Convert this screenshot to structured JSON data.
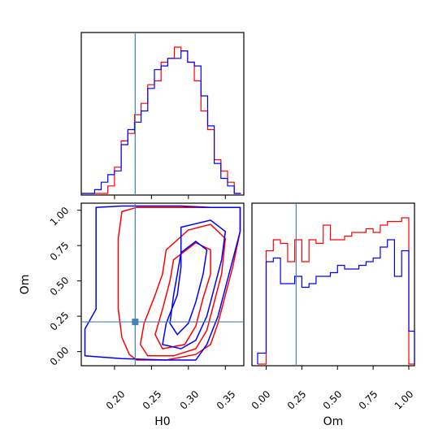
{
  "chart_data": {
    "type": "corner",
    "parameters": [
      "H0",
      "Om"
    ],
    "truth": {
      "H0": 0.228,
      "Om": 0.21
    },
    "colors": {
      "series_a": "#ff0000",
      "series_b": "#0000ff",
      "truth": "#4682b4"
    },
    "panels": {
      "h0_marginal": {
        "type": "histogram",
        "xlim": [
          0.155,
          0.375
        ],
        "bin_edges": [
          0.155,
          0.164,
          0.173,
          0.182,
          0.191,
          0.2,
          0.209,
          0.218,
          0.227,
          0.236,
          0.245,
          0.254,
          0.263,
          0.272,
          0.281,
          0.29,
          0.299,
          0.308,
          0.317,
          0.326,
          0.335,
          0.344,
          0.353,
          0.362,
          0.371
        ],
        "series": [
          {
            "color_key": "series_a",
            "counts": [
              0,
              0,
              0,
              0,
              2,
              7,
              14,
              16,
              21,
              24,
              29,
              30,
              35,
              36,
              39,
              38,
              35,
              30,
              22,
              17,
              9,
              6,
              3,
              0
            ]
          },
          {
            "color_key": "series_b",
            "counts": [
              0,
              0,
              1,
              3,
              5,
              6,
              13,
              17,
              19,
              22,
              28,
              33,
              34,
              36,
              36,
              38,
              35,
              34,
              26,
              18,
              8,
              4,
              2,
              0
            ]
          }
        ]
      },
      "om_marginal": {
        "type": "histogram",
        "xlim": [
          -0.1,
          1.04
        ],
        "xticks": [
          "0.00",
          "0.25",
          "0.50",
          "0.75",
          "1.00"
        ],
        "bin_edges": [
          -0.06,
          0.0,
          0.05,
          0.1,
          0.15,
          0.2,
          0.25,
          0.3,
          0.35,
          0.4,
          0.45,
          0.5,
          0.55,
          0.6,
          0.65,
          0.7,
          0.75,
          0.8,
          0.85,
          0.9,
          0.95,
          1.0,
          1.04
        ],
        "series": [
          {
            "color_key": "series_a",
            "counts": [
              0,
              31,
              34,
              33,
              28,
              34,
              28,
              34,
              33,
              38,
              34,
              34,
              35,
              36,
              36,
              37,
              36,
              38,
              39,
              39,
              40,
              0
            ]
          },
          {
            "color_key": "series_b",
            "counts": [
              3,
              28,
              29,
              22,
              22,
              24,
              21,
              22,
              24,
              24,
              25,
              27,
              26,
              26,
              27,
              28,
              29,
              32,
              34,
              24,
              31,
              9
            ]
          }
        ]
      },
      "joint": {
        "type": "contour",
        "xlabel": "H0",
        "ylabel": "Om",
        "xlim": [
          0.155,
          0.375
        ],
        "ylim": [
          -0.1,
          1.05
        ],
        "xticks": [
          "0.20",
          "0.25",
          "0.30",
          "0.35"
        ],
        "yticks": [
          "0.00",
          "0.25",
          "0.50",
          "0.75",
          "1.00"
        ],
        "series": [
          {
            "color_key": "series_a",
            "contours": [
              [
                [
                  0.21,
                  0.99
                ],
                [
                  0.23,
                  1.02
                ],
                [
                  0.26,
                  1.02
                ],
                [
                  0.3,
                  1.02
                ],
                [
                  0.33,
                  1.02
                ],
                [
                  0.37,
                  1.02
                ],
                [
                  0.37,
                  0.85
                ],
                [
                  0.36,
                  0.6
                ],
                [
                  0.35,
                  0.4
                ],
                [
                  0.34,
                  0.2
                ],
                [
                  0.33,
                  0.05
                ],
                [
                  0.31,
                  -0.02
                ],
                [
                  0.27,
                  -0.06
                ],
                [
                  0.23,
                  -0.06
                ],
                [
                  0.22,
                  -0.02
                ],
                [
                  0.21,
                  0.1
                ],
                [
                  0.205,
                  0.3
                ],
                [
                  0.205,
                  0.55
                ],
                [
                  0.205,
                  0.8
                ]
              ],
              [
                [
                  0.27,
                  0.72
                ],
                [
                  0.3,
                  0.86
                ],
                [
                  0.33,
                  0.9
                ],
                [
                  0.35,
                  0.8
                ],
                [
                  0.345,
                  0.55
                ],
                [
                  0.335,
                  0.35
                ],
                [
                  0.325,
                  0.15
                ],
                [
                  0.31,
                  0.02
                ],
                [
                  0.28,
                  -0.03
                ],
                [
                  0.245,
                  -0.03
                ],
                [
                  0.235,
                  0.05
                ],
                [
                  0.24,
                  0.2
                ],
                [
                  0.255,
                  0.4
                ],
                [
                  0.265,
                  0.55
                ]
              ],
              [
                [
                  0.28,
                  0.65
                ],
                [
                  0.31,
                  0.77
                ],
                [
                  0.33,
                  0.72
                ],
                [
                  0.33,
                  0.55
                ],
                [
                  0.32,
                  0.38
                ],
                [
                  0.31,
                  0.18
                ],
                [
                  0.295,
                  0.05
                ],
                [
                  0.265,
                  0.02
                ],
                [
                  0.255,
                  0.12
                ],
                [
                  0.265,
                  0.3
                ],
                [
                  0.275,
                  0.5
                ]
              ]
            ]
          },
          {
            "color_key": "series_b",
            "contours": [
              [
                [
                  0.175,
                  1.02
                ],
                [
                  0.21,
                  1.03
                ],
                [
                  0.25,
                  1.03
                ],
                [
                  0.29,
                  1.03
                ],
                [
                  0.33,
                  1.02
                ],
                [
                  0.37,
                  1.02
                ],
                [
                  0.37,
                  0.85
                ],
                [
                  0.36,
                  0.65
                ],
                [
                  0.35,
                  0.45
                ],
                [
                  0.34,
                  0.25
                ],
                [
                  0.325,
                  0.05
                ],
                [
                  0.31,
                  -0.06
                ],
                [
                  0.27,
                  -0.06
                ],
                [
                  0.21,
                  -0.05
                ],
                [
                  0.16,
                  -0.03
                ],
                [
                  0.16,
                  0.16
                ],
                [
                  0.175,
                  0.3
                ],
                [
                  0.175,
                  0.55
                ],
                [
                  0.175,
                  0.8
                ]
              ],
              [
                [
                  0.29,
                  0.88
                ],
                [
                  0.33,
                  0.93
                ],
                [
                  0.35,
                  0.85
                ],
                [
                  0.345,
                  0.65
                ],
                [
                  0.335,
                  0.45
                ],
                [
                  0.325,
                  0.25
                ],
                [
                  0.31,
                  0.08
                ],
                [
                  0.29,
                  0.02
                ],
                [
                  0.265,
                  0.05
                ],
                [
                  0.27,
                  0.2
                ],
                [
                  0.285,
                  0.4
                ],
                [
                  0.29,
                  0.6
                ]
              ],
              [
                [
                  0.29,
                  0.7
                ],
                [
                  0.31,
                  0.78
                ],
                [
                  0.325,
                  0.72
                ],
                [
                  0.32,
                  0.55
                ],
                [
                  0.31,
                  0.35
                ],
                [
                  0.3,
                  0.2
                ],
                [
                  0.285,
                  0.12
                ],
                [
                  0.275,
                  0.2
                ],
                [
                  0.28,
                  0.4
                ],
                [
                  0.285,
                  0.55
                ]
              ]
            ]
          }
        ]
      }
    }
  }
}
